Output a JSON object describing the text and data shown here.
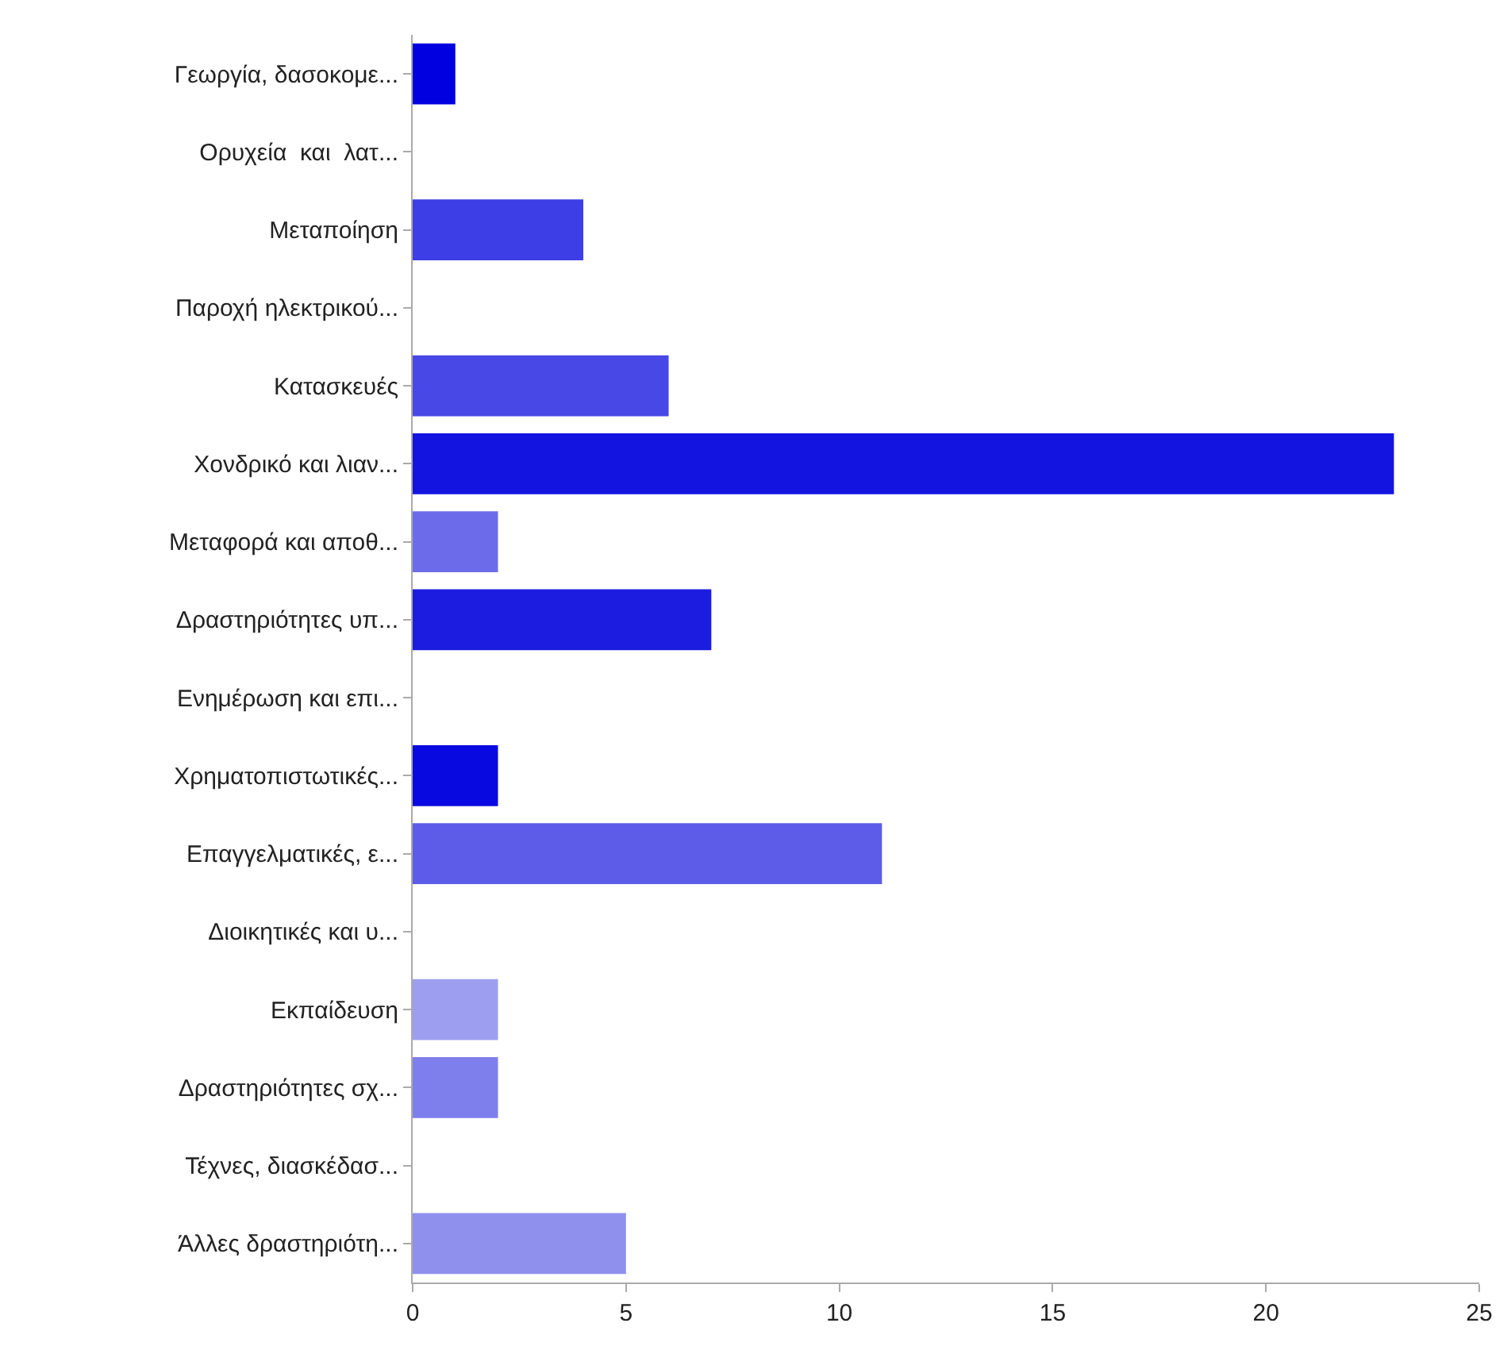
{
  "chart_data": {
    "type": "bar",
    "orientation": "horizontal",
    "categories": [
      "Γεωργία, δασοκομε...",
      "Ορυχεία  και  λατ...",
      "Μεταποίηση",
      "Παροχή ηλεκτρικού...",
      "Κατασκευές",
      "Χονδρικό και λιαν...",
      "Μεταφορά και αποθ...",
      "Δραστηριότητες υπ...",
      "Ενημέρωση και επι...",
      "Χρηματοπιστωτικές...",
      "Επαγγελματικές, ε...",
      "Διοικητικές και υ...",
      "Εκπαίδευση",
      "Δραστηριότητες σχ...",
      "Τέχνες, διασκέδασ...",
      "Άλλες δραστηριότη..."
    ],
    "values": [
      1,
      0,
      4,
      0,
      6,
      23,
      2,
      7,
      0,
      2,
      11,
      0,
      2,
      2,
      0,
      5
    ],
    "colors": [
      "#0000e0",
      null,
      "#3e3ee6",
      null,
      "#4848e6",
      "#1414e0",
      "#6c6ceb",
      "#1c1ce0",
      null,
      "#0808e0",
      "#5c5ce8",
      null,
      "#9e9ef0",
      "#7e7eec",
      null,
      "#8f8fee"
    ],
    "xlim": [
      0,
      25
    ],
    "xticks": [
      0,
      5,
      10,
      15,
      20,
      25
    ]
  }
}
